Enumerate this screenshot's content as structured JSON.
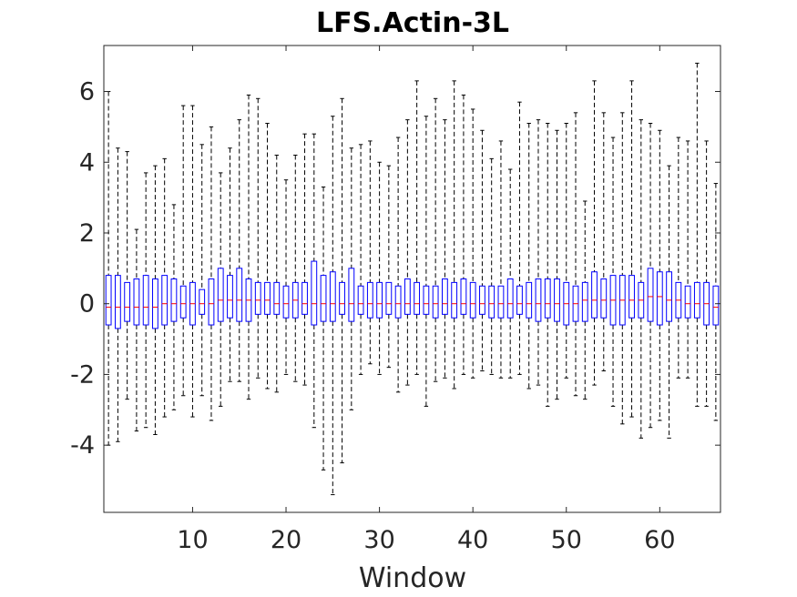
{
  "chart_data": {
    "type": "box",
    "title": "LFS.Actin-3L",
    "xlabel": "Window",
    "ylabel": "",
    "xlim": [
      0.5,
      66.5
    ],
    "ylim": [
      -5.9,
      7.3
    ],
    "xticks": [
      10,
      20,
      30,
      40,
      50,
      60
    ],
    "xtick_labels": [
      "10",
      "20",
      "30",
      "40",
      "50",
      "60"
    ],
    "yticks": [
      -4,
      -2,
      0,
      2,
      4,
      6
    ],
    "ytick_labels": [
      "-4",
      "-2",
      "0",
      "2",
      "4",
      "6"
    ],
    "grid": false,
    "colors": {
      "box": "#0000ff",
      "median": "#ff0000",
      "whisker": "#000000",
      "axes": "#262626"
    },
    "windows": [
      1,
      2,
      3,
      4,
      5,
      6,
      7,
      8,
      9,
      10,
      11,
      12,
      13,
      14,
      15,
      16,
      17,
      18,
      19,
      20,
      21,
      22,
      23,
      24,
      25,
      26,
      27,
      28,
      29,
      30,
      31,
      32,
      33,
      34,
      35,
      36,
      37,
      38,
      39,
      40,
      41,
      42,
      43,
      44,
      45,
      46,
      47,
      48,
      49,
      50,
      51,
      52,
      53,
      54,
      55,
      56,
      57,
      58,
      59,
      60,
      61,
      62,
      63,
      64,
      65,
      66
    ],
    "q1": [
      -0.6,
      -0.7,
      -0.5,
      -0.6,
      -0.6,
      -0.7,
      -0.6,
      -0.5,
      -0.4,
      -0.6,
      -0.3,
      -0.6,
      -0.5,
      -0.4,
      -0.5,
      -0.5,
      -0.3,
      -0.3,
      -0.3,
      -0.4,
      -0.4,
      -0.3,
      -0.6,
      -0.5,
      -0.5,
      -0.3,
      -0.5,
      -0.3,
      -0.4,
      -0.4,
      -0.3,
      -0.4,
      -0.3,
      -0.3,
      -0.3,
      -0.4,
      -0.3,
      -0.4,
      -0.3,
      -0.4,
      -0.3,
      -0.4,
      -0.4,
      -0.4,
      -0.3,
      -0.4,
      -0.5,
      -0.4,
      -0.5,
      -0.6,
      -0.5,
      -0.5,
      -0.4,
      -0.4,
      -0.6,
      -0.6,
      -0.4,
      -0.4,
      -0.5,
      -0.6,
      -0.5,
      -0.4,
      -0.4,
      -0.4,
      -0.6,
      -0.6
    ],
    "median": [
      -0.1,
      -0.1,
      -0.1,
      -0.1,
      -0.1,
      -0.1,
      0.0,
      0.0,
      0.0,
      0.0,
      0.0,
      0.0,
      0.1,
      0.1,
      0.1,
      0.1,
      0.1,
      0.1,
      0.0,
      0.0,
      0.1,
      0.0,
      0.0,
      0.0,
      0.0,
      0.0,
      0.0,
      0.0,
      0.0,
      0.0,
      0.0,
      0.0,
      0.0,
      0.0,
      0.0,
      0.0,
      0.0,
      0.0,
      0.0,
      0.0,
      0.0,
      0.0,
      0.0,
      0.0,
      0.0,
      0.0,
      0.0,
      0.0,
      0.0,
      0.0,
      0.0,
      0.1,
      0.1,
      0.1,
      0.1,
      0.1,
      0.1,
      0.1,
      0.2,
      0.2,
      0.1,
      0.1,
      0.0,
      0.0,
      0.0,
      -0.1
    ],
    "q3": [
      0.8,
      0.8,
      0.6,
      0.7,
      0.8,
      0.7,
      0.8,
      0.7,
      0.5,
      0.6,
      0.4,
      0.7,
      1.0,
      0.8,
      1.0,
      0.7,
      0.6,
      0.6,
      0.6,
      0.5,
      0.6,
      0.6,
      1.2,
      0.8,
      0.9,
      0.6,
      1.0,
      0.5,
      0.6,
      0.6,
      0.6,
      0.5,
      0.7,
      0.6,
      0.5,
      0.5,
      0.7,
      0.6,
      0.7,
      0.6,
      0.5,
      0.5,
      0.5,
      0.7,
      0.5,
      0.6,
      0.7,
      0.7,
      0.7,
      0.6,
      0.5,
      0.6,
      0.9,
      0.7,
      0.8,
      0.8,
      0.8,
      0.6,
      1.0,
      0.9,
      0.9,
      0.6,
      0.5,
      0.6,
      0.6,
      0.5
    ],
    "whisker_low": [
      -4.0,
      -3.9,
      -2.7,
      -3.6,
      -3.5,
      -3.7,
      -3.2,
      -3.0,
      -2.6,
      -3.2,
      -2.6,
      -3.3,
      -2.9,
      -2.2,
      -2.2,
      -2.7,
      -2.1,
      -2.4,
      -2.5,
      -2.0,
      -2.2,
      -2.3,
      -3.5,
      -4.7,
      -5.4,
      -4.5,
      -3.0,
      -2.0,
      -1.7,
      -2.0,
      -1.8,
      -2.5,
      -2.3,
      -2.0,
      -2.9,
      -2.2,
      -2.1,
      -2.4,
      -2.0,
      -2.1,
      -1.9,
      -2.0,
      -2.1,
      -2.1,
      -2.0,
      -2.4,
      -2.3,
      -2.9,
      -2.7,
      -2.1,
      -2.6,
      -2.7,
      -2.3,
      -1.9,
      -2.9,
      -3.4,
      -3.2,
      -3.8,
      -3.5,
      -3.3,
      -3.8,
      -2.1,
      -2.1,
      -2.9,
      -2.9,
      -3.3
    ],
    "whisker_high": [
      6.0,
      4.4,
      4.3,
      2.1,
      3.7,
      3.9,
      4.1,
      2.8,
      5.6,
      5.6,
      4.5,
      5.0,
      3.7,
      4.4,
      5.2,
      5.9,
      5.8,
      5.1,
      4.2,
      3.5,
      4.2,
      4.8,
      4.8,
      3.3,
      5.3,
      5.8,
      4.4,
      4.5,
      4.6,
      4.0,
      3.9,
      4.7,
      5.2,
      6.3,
      5.3,
      5.8,
      5.2,
      6.3,
      5.9,
      5.5,
      4.9,
      4.1,
      4.6,
      3.8,
      5.7,
      5.1,
      5.2,
      5.1,
      4.9,
      5.1,
      5.4,
      2.9,
      6.3,
      5.4,
      4.7,
      5.4,
      6.3,
      5.2,
      5.1,
      4.9,
      3.9,
      4.7,
      4.6,
      6.8,
      4.6,
      3.4
    ]
  }
}
